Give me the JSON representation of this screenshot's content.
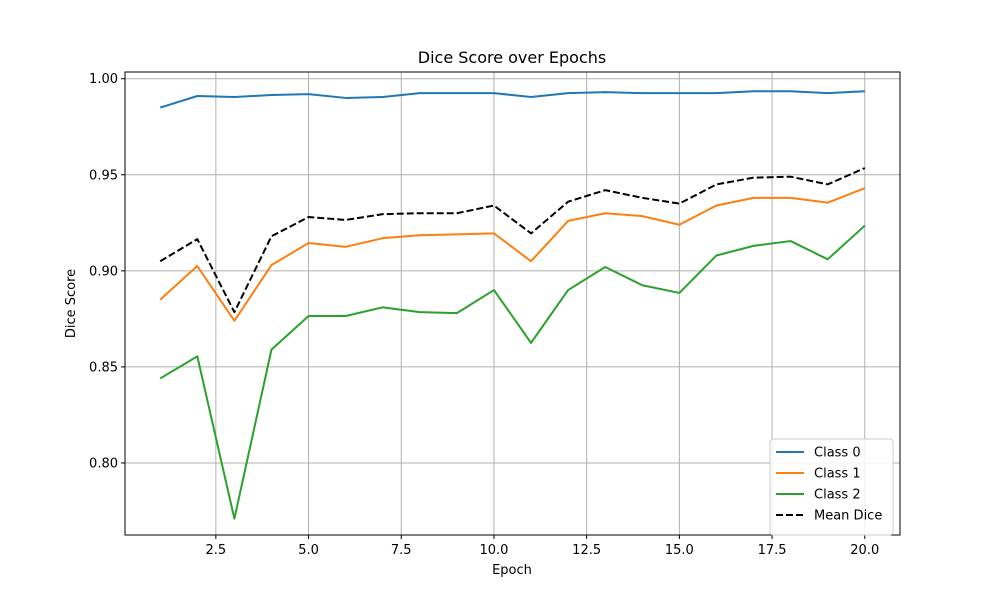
{
  "chart_data": {
    "type": "line",
    "title": "Dice Score over Epochs",
    "xlabel": "Epoch",
    "ylabel": "Dice Score",
    "xlim": [
      0.05,
      20.95
    ],
    "ylim": [
      0.7625,
      1.0035
    ],
    "x_ticks": [
      2.5,
      5.0,
      7.5,
      10.0,
      12.5,
      15.0,
      17.5,
      20.0
    ],
    "x_tick_labels": [
      "2.5",
      "5.0",
      "7.5",
      "10.0",
      "12.5",
      "15.0",
      "17.5",
      "20.0"
    ],
    "y_ticks": [
      0.8,
      0.85,
      0.9,
      0.95,
      1.0
    ],
    "y_tick_labels": [
      "0.80",
      "0.85",
      "0.90",
      "0.95",
      "1.00"
    ],
    "grid": true,
    "legend_position": "lower-right",
    "x": [
      1,
      2,
      3,
      4,
      5,
      6,
      7,
      8,
      9,
      10,
      11,
      12,
      13,
      14,
      15,
      16,
      17,
      18,
      19,
      20
    ],
    "series": [
      {
        "name": "Class 0",
        "color": "#1f77b4",
        "dash": "solid",
        "values": [
          0.985,
          0.991,
          0.9905,
          0.9915,
          0.992,
          0.99,
          0.9905,
          0.9925,
          0.9925,
          0.9925,
          0.9905,
          0.9925,
          0.993,
          0.9925,
          0.9925,
          0.9925,
          0.9935,
          0.9935,
          0.9925,
          0.9935
        ]
      },
      {
        "name": "Class 1",
        "color": "#ff7f0e",
        "dash": "solid",
        "values": [
          0.885,
          0.9025,
          0.874,
          0.903,
          0.9145,
          0.9125,
          0.917,
          0.9185,
          0.919,
          0.9195,
          0.905,
          0.926,
          0.93,
          0.9285,
          0.924,
          0.934,
          0.938,
          0.938,
          0.9355,
          0.943
        ]
      },
      {
        "name": "Class 2",
        "color": "#2ca02c",
        "dash": "solid",
        "values": [
          0.844,
          0.8555,
          0.771,
          0.859,
          0.8765,
          0.8765,
          0.881,
          0.8785,
          0.878,
          0.89,
          0.8625,
          0.89,
          0.902,
          0.8925,
          0.8885,
          0.908,
          0.913,
          0.9155,
          0.906,
          0.9235
        ]
      },
      {
        "name": "Mean Dice",
        "color": "#000000",
        "dash": "dashed",
        "values": [
          0.905,
          0.9165,
          0.8785,
          0.918,
          0.928,
          0.9265,
          0.9295,
          0.93,
          0.93,
          0.934,
          0.9195,
          0.936,
          0.942,
          0.938,
          0.935,
          0.945,
          0.9485,
          0.949,
          0.945,
          0.9535
        ]
      }
    ]
  }
}
